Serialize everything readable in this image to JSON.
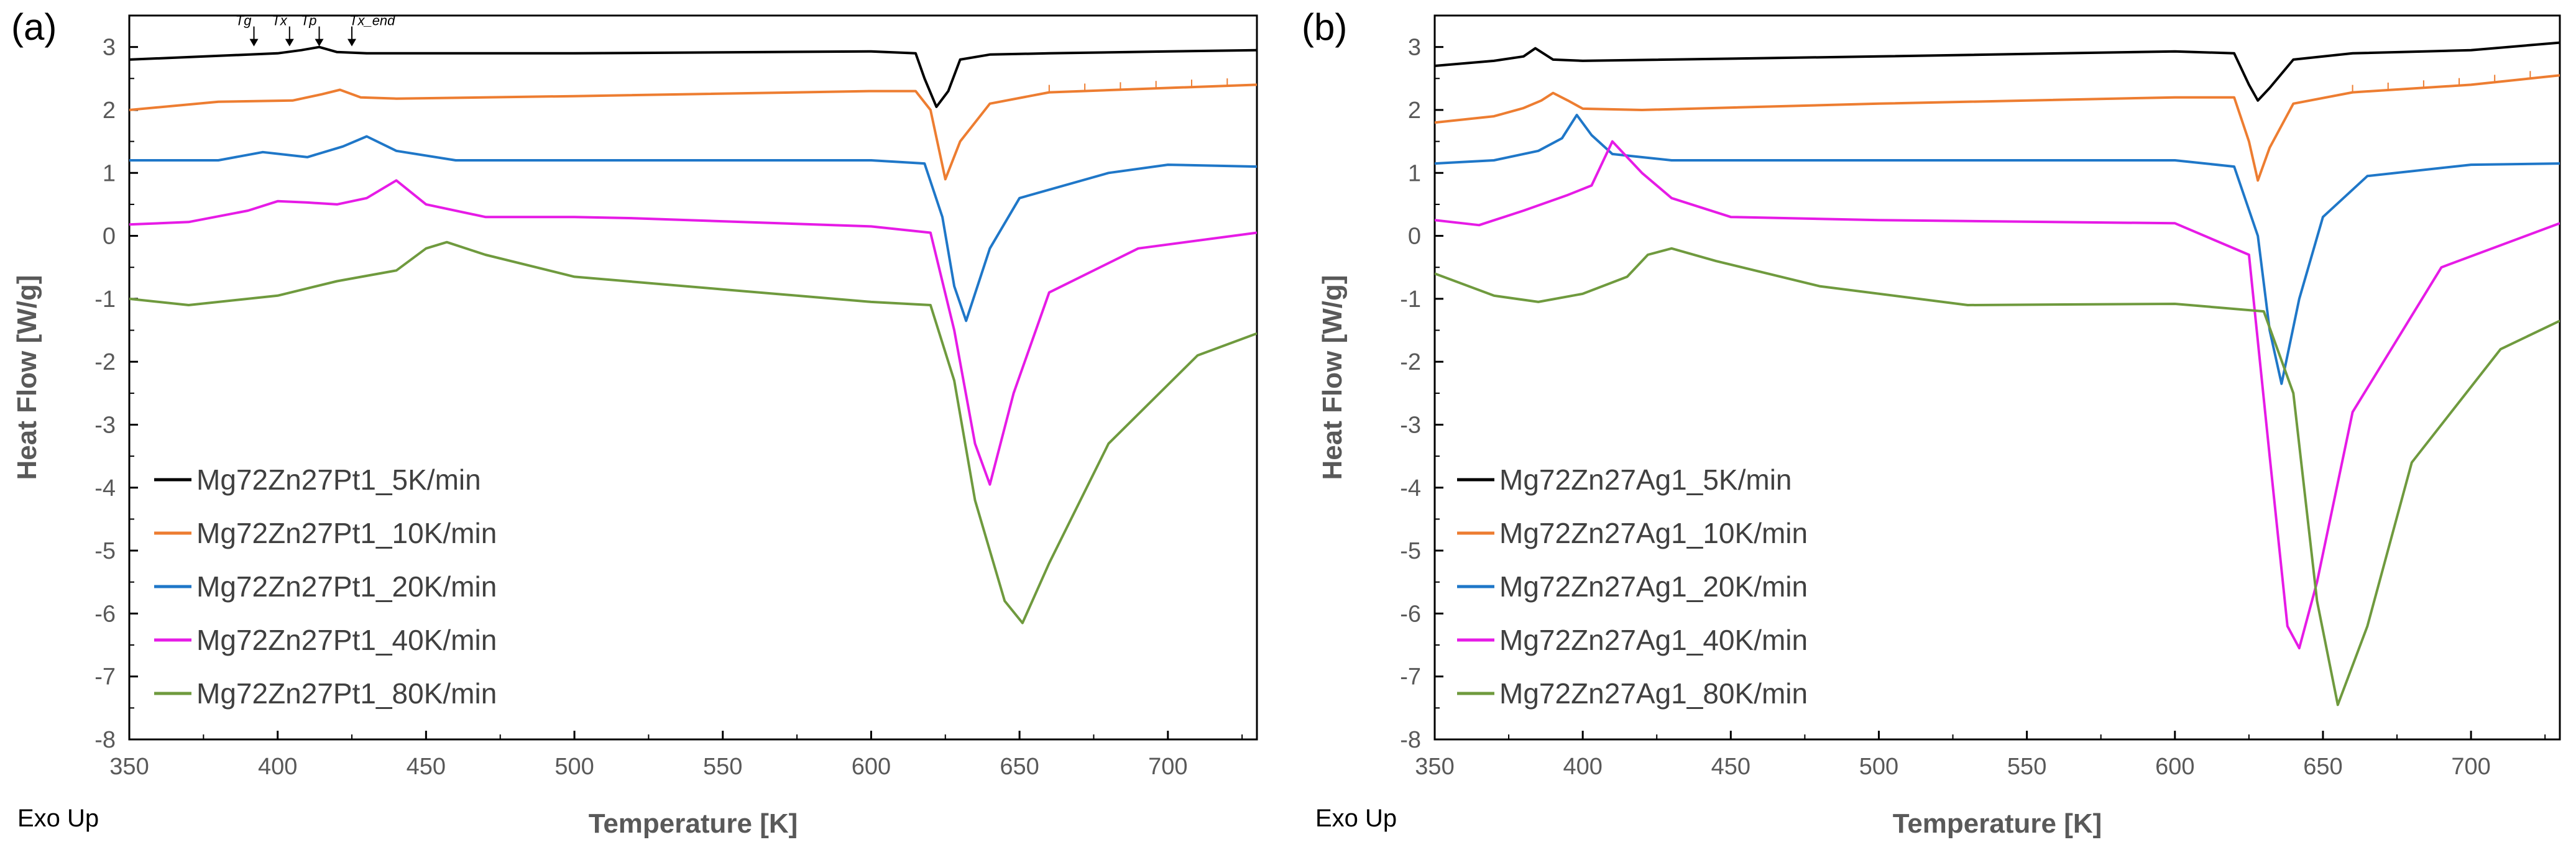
{
  "chart_data": [
    {
      "type": "line",
      "panel_label": "(a)",
      "xlabel": "Temperature [K]",
      "ylabel": "Heat Flow [W/g]",
      "xlim": [
        350,
        730
      ],
      "ylim": [
        -8,
        3.5
      ],
      "xticks": [
        350,
        400,
        450,
        500,
        550,
        600,
        650,
        700
      ],
      "yticks": [
        -8,
        -7,
        -6,
        -5,
        -4,
        -3,
        -2,
        -1,
        0,
        1,
        2,
        3
      ],
      "corner_note": "Exo Up",
      "annotations": [
        {
          "label": "Tg",
          "x": 392,
          "y": 3.05
        },
        {
          "label": "Tx",
          "x": 404,
          "y": 3.05
        },
        {
          "label": "Tp",
          "x": 414,
          "y": 3.05
        },
        {
          "label": "Tx_end",
          "x": 425,
          "y": 3.05
        }
      ],
      "series": [
        {
          "name": "Mg72Zn27Pt1_5K/min",
          "color": "#000000",
          "x": [
            350,
            400,
            408,
            414,
            420,
            430,
            500,
            600,
            615,
            618,
            622,
            626,
            630,
            640,
            660,
            700,
            730
          ],
          "y": [
            2.8,
            2.9,
            2.95,
            3.0,
            2.92,
            2.9,
            2.9,
            2.93,
            2.9,
            2.5,
            2.05,
            2.3,
            2.8,
            2.88,
            2.9,
            2.93,
            2.95
          ]
        },
        {
          "name": "Mg72Zn27Pt1_10K/min",
          "color": "#ED7D31",
          "x": [
            350,
            380,
            405,
            415,
            421,
            428,
            440,
            500,
            600,
            615,
            620,
            625,
            630,
            640,
            660,
            700,
            730
          ],
          "y": [
            2.0,
            2.13,
            2.15,
            2.25,
            2.32,
            2.2,
            2.18,
            2.22,
            2.3,
            2.3,
            2.0,
            0.9,
            1.5,
            2.1,
            2.28,
            2.35,
            2.4
          ],
          "dashed_x": [
            660,
            730
          ]
        },
        {
          "name": "Mg72Zn27Pt1_20K/min",
          "color": "#1F77C8",
          "x": [
            350,
            380,
            395,
            410,
            422,
            430,
            440,
            460,
            500,
            600,
            618,
            624,
            628,
            632,
            640,
            650,
            680,
            700,
            730
          ],
          "y": [
            1.2,
            1.2,
            1.33,
            1.25,
            1.42,
            1.58,
            1.35,
            1.2,
            1.2,
            1.2,
            1.15,
            0.3,
            -0.8,
            -1.35,
            -0.2,
            0.6,
            1.0,
            1.13,
            1.1
          ]
        },
        {
          "name": "Mg72Zn27Pt1_40K/min",
          "color": "#E61BE6",
          "x": [
            350,
            370,
            390,
            400,
            410,
            420,
            430,
            440,
            450,
            470,
            500,
            520,
            600,
            620,
            628,
            635,
            640,
            648,
            660,
            690,
            730
          ],
          "y": [
            0.18,
            0.22,
            0.4,
            0.55,
            0.53,
            0.5,
            0.6,
            0.88,
            0.5,
            0.3,
            0.3,
            0.28,
            0.15,
            0.05,
            -1.5,
            -3.3,
            -3.95,
            -2.5,
            -0.9,
            -0.2,
            0.05
          ]
        },
        {
          "name": "Mg72Zn27Pt1_80K/min",
          "color": "#6F9A3E",
          "x": [
            350,
            370,
            400,
            420,
            440,
            450,
            457,
            470,
            500,
            550,
            600,
            620,
            628,
            635,
            645,
            651,
            660,
            680,
            710,
            730
          ],
          "y": [
            -1.0,
            -1.1,
            -0.95,
            -0.72,
            -0.55,
            -0.2,
            -0.1,
            -0.3,
            -0.65,
            -0.85,
            -1.05,
            -1.1,
            -2.3,
            -4.2,
            -5.8,
            -6.15,
            -5.2,
            -3.3,
            -1.9,
            -1.55
          ]
        }
      ]
    },
    {
      "type": "line",
      "panel_label": "(b)",
      "xlabel": "Temperature [K]",
      "ylabel": "Heat Flow [W/g]",
      "xlim": [
        350,
        730
      ],
      "ylim": [
        -8,
        3.5
      ],
      "xticks": [
        350,
        400,
        450,
        500,
        550,
        600,
        650,
        700
      ],
      "yticks": [
        -8,
        -7,
        -6,
        -5,
        -4,
        -3,
        -2,
        -1,
        0,
        1,
        2,
        3
      ],
      "corner_note": "Exo Up",
      "series": [
        {
          "name": "Mg72Zn27Ag1_5K/min",
          "color": "#000000",
          "x": [
            350,
            370,
            380,
            384,
            390,
            400,
            500,
            600,
            620,
            625,
            628,
            632,
            640,
            660,
            700,
            730
          ],
          "y": [
            2.7,
            2.78,
            2.85,
            2.98,
            2.8,
            2.78,
            2.85,
            2.93,
            2.9,
            2.4,
            2.15,
            2.35,
            2.8,
            2.9,
            2.95,
            3.07
          ]
        },
        {
          "name": "Mg72Zn27Ag1_10K/min",
          "color": "#ED7D31",
          "x": [
            350,
            370,
            380,
            386,
            390,
            395,
            400,
            420,
            500,
            600,
            620,
            625,
            628,
            632,
            640,
            660,
            700,
            730
          ],
          "y": [
            1.8,
            1.9,
            2.03,
            2.15,
            2.27,
            2.15,
            2.02,
            2.0,
            2.1,
            2.2,
            2.2,
            1.5,
            0.88,
            1.4,
            2.1,
            2.28,
            2.4,
            2.55
          ],
          "dashed_x": [
            660,
            730
          ]
        },
        {
          "name": "Mg72Zn27Ag1_20K/min",
          "color": "#1F77C8",
          "x": [
            350,
            370,
            385,
            393,
            398,
            403,
            410,
            430,
            500,
            600,
            620,
            628,
            632,
            636,
            642,
            650,
            665,
            700,
            730
          ],
          "y": [
            1.15,
            1.2,
            1.35,
            1.55,
            1.92,
            1.6,
            1.3,
            1.2,
            1.2,
            1.2,
            1.1,
            0.0,
            -1.5,
            -2.35,
            -1.0,
            0.3,
            0.95,
            1.13,
            1.15
          ]
        },
        {
          "name": "Mg72Zn27Ag1_40K/min",
          "color": "#E61BE6",
          "x": [
            350,
            365,
            380,
            395,
            403,
            410,
            420,
            430,
            450,
            500,
            600,
            625,
            632,
            638,
            642,
            648,
            660,
            690,
            730
          ],
          "y": [
            0.25,
            0.17,
            0.4,
            0.65,
            0.8,
            1.5,
            1.0,
            0.6,
            0.3,
            0.25,
            0.2,
            -0.3,
            -3.5,
            -6.2,
            -6.55,
            -5.5,
            -2.8,
            -0.5,
            0.2
          ]
        },
        {
          "name": "Mg72Zn27Ag1_80K/min",
          "color": "#6F9A3E",
          "x": [
            350,
            370,
            385,
            400,
            415,
            422,
            430,
            445,
            480,
            530,
            600,
            630,
            640,
            648,
            655,
            665,
            680,
            710,
            730
          ],
          "y": [
            -0.6,
            -0.95,
            -1.05,
            -0.92,
            -0.65,
            -0.3,
            -0.2,
            -0.4,
            -0.8,
            -1.1,
            -1.08,
            -1.2,
            -2.5,
            -5.8,
            -7.45,
            -6.2,
            -3.6,
            -1.8,
            -1.35
          ]
        }
      ]
    }
  ]
}
